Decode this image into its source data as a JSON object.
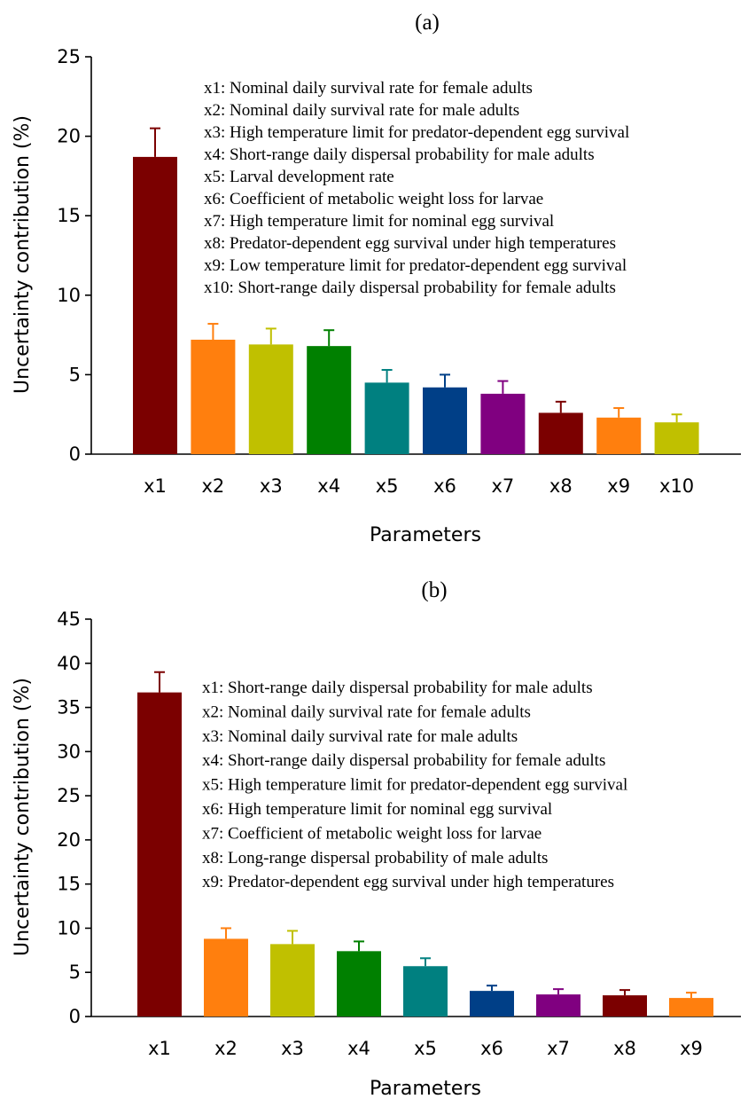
{
  "chart_data": [
    {
      "type": "bar",
      "title": "(a)",
      "xlabel": "Parameters",
      "ylabel": "Uncertainty contribution (%)",
      "ylim": [
        0,
        25
      ],
      "yticks": [
        0,
        5,
        10,
        15,
        20,
        25
      ],
      "grid": false,
      "legend_position": "top-right",
      "categories": [
        "x1",
        "x2",
        "x3",
        "x4",
        "x5",
        "x6",
        "x7",
        "x8",
        "x9",
        "x10"
      ],
      "values": [
        18.7,
        7.2,
        6.9,
        6.8,
        4.5,
        4.2,
        3.8,
        2.6,
        2.3,
        2.0
      ],
      "error": [
        1.8,
        1.0,
        1.0,
        1.0,
        0.8,
        0.8,
        0.8,
        0.7,
        0.6,
        0.5
      ],
      "colors": [
        "#7b0000",
        "#ff7f0e",
        "#c0c000",
        "#008000",
        "#008080",
        "#003f87",
        "#800080",
        "#7b0000",
        "#ff7f0e",
        "#c0c000"
      ],
      "legend_lines": [
        "x1: Nominal daily survival rate for female adults",
        "x2: Nominal daily survival rate for male adults",
        "x3: High temperature limit for predator-dependent egg survival",
        "x4: Short-range daily dispersal probability for  male adults",
        "x5: Larval development rate",
        "x6: Coefficient of metabolic weight loss for larvae",
        "x7: High temperature limit for nominal egg survival",
        "x8: Predator-dependent egg survival under high temperatures",
        "x9: Low temperature limit for predator-dependent egg survival",
        "x10: Short-range daily dispersal probability for female adults"
      ]
    },
    {
      "type": "bar",
      "title": "(b)",
      "xlabel": "Parameters",
      "ylabel": "Uncertainty contribution (%)",
      "ylim": [
        0,
        45
      ],
      "yticks": [
        0,
        5,
        10,
        15,
        20,
        25,
        30,
        35,
        40,
        45
      ],
      "grid": false,
      "legend_position": "top-right",
      "categories": [
        "x1",
        "x2",
        "x3",
        "x4",
        "x5",
        "x6",
        "x7",
        "x8",
        "x9"
      ],
      "values": [
        36.7,
        8.8,
        8.2,
        7.4,
        5.7,
        2.9,
        2.5,
        2.4,
        2.1
      ],
      "error": [
        2.3,
        1.2,
        1.5,
        1.1,
        0.9,
        0.6,
        0.6,
        0.6,
        0.6
      ],
      "colors": [
        "#7b0000",
        "#ff7f0e",
        "#c0c000",
        "#008000",
        "#008080",
        "#003f87",
        "#800080",
        "#7b0000",
        "#ff7f0e"
      ],
      "legend_lines": [
        "x1: Short-range daily dispersal probability for male adults",
        "x2: Nominal daily survival rate for female adults",
        "x3: Nominal daily survival rate for male adults",
        "x4: Short-range daily dispersal probability for female adults",
        "x5: High temperature limit for predator-dependent egg survival",
        "x6: High temperature limit for nominal egg survival",
        "x7: Coefficient of metabolic weight loss for larvae",
        "x8: Long-range dispersal probability of male adults",
        "x9: Predator-dependent egg survival under high temperatures"
      ]
    }
  ]
}
